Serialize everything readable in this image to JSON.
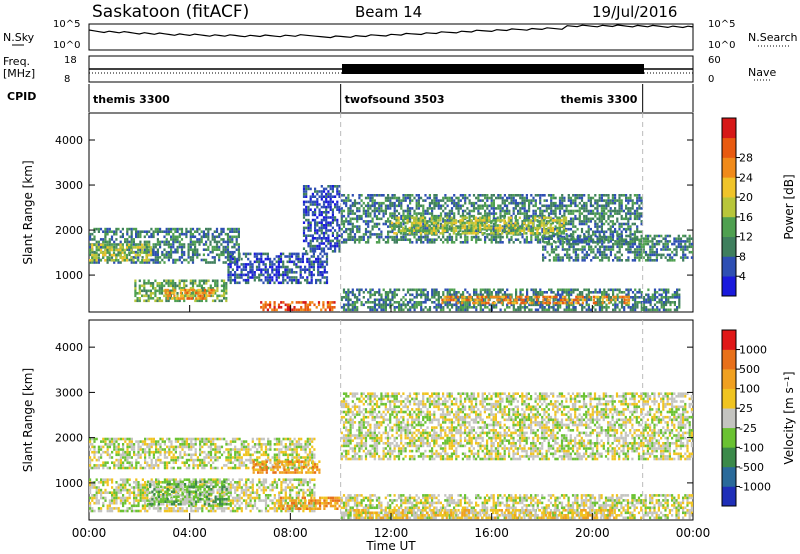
{
  "header": {
    "station": "Saskatoon (fitACF)",
    "beam": "Beam 14",
    "date": "19/Jul/2016"
  },
  "status_panels": {
    "nsky": {
      "label": "N.Sky",
      "ticks_left": [
        "10^5",
        "10^0"
      ]
    },
    "nsearch": {
      "label": "N.Search",
      "ticks_right": [
        "10^5",
        "10^0"
      ]
    },
    "freq": {
      "label_line1": "Freq.",
      "label_line2": "[MHz]",
      "ticks_left": [
        "18",
        "8"
      ]
    },
    "nave": {
      "label": "Nave",
      "ticks_right": [
        "60",
        "0"
      ]
    },
    "cpid": {
      "label": "CPID",
      "segments": [
        {
          "name": "themis 3300",
          "start_h": 0,
          "end_h": 10
        },
        {
          "name": "twofsound 3503",
          "start_h": 10,
          "end_h": 22
        },
        {
          "name": "themis 3300",
          "start_h": 22,
          "end_h": 24
        }
      ]
    }
  },
  "chart_data": [
    {
      "type": "heatmap",
      "title": "Power",
      "ylabel": "Slant Range [km]",
      "xlabel": "Time UT",
      "xlim_hours": [
        0,
        24
      ],
      "ylim_km": [
        180,
        4600
      ],
      "y_ticks": [
        "1000",
        "2000",
        "3000",
        "4000"
      ],
      "x_ticks": [
        "00:00",
        "04:00",
        "08:00",
        "12:00",
        "16:00",
        "20:00",
        "00:00"
      ],
      "colorbar": {
        "label": "Power [dB]",
        "ticks": [
          "4",
          "8",
          "12",
          "16",
          "20",
          "24",
          "28"
        ],
        "colors": [
          "#1a1adc",
          "#2e4fb3",
          "#3f7f5e",
          "#4fa050",
          "#b8c63a",
          "#f0c42a",
          "#f08a1a",
          "#e85a10",
          "#d61818"
        ]
      },
      "regions": [
        {
          "t0": 0.0,
          "t1": 6.0,
          "r0": 1250,
          "r1": 2050,
          "level": 2
        },
        {
          "t0": 0.0,
          "t1": 2.5,
          "r0": 1300,
          "r1": 1700,
          "level": 4
        },
        {
          "t0": 1.8,
          "t1": 5.5,
          "r0": 400,
          "r1": 900,
          "level": 3
        },
        {
          "t0": 3.0,
          "t1": 5.0,
          "r0": 450,
          "r1": 700,
          "level": 6
        },
        {
          "t0": 5.5,
          "t1": 9.5,
          "r0": 800,
          "r1": 1500,
          "level": 1
        },
        {
          "t0": 6.8,
          "t1": 9.8,
          "r0": 200,
          "r1": 420,
          "level": 7
        },
        {
          "t0": 8.5,
          "t1": 10.0,
          "r0": 1500,
          "r1": 3000,
          "level": 1
        },
        {
          "t0": 10.0,
          "t1": 22.0,
          "r0": 1700,
          "r1": 2800,
          "level": 2
        },
        {
          "t0": 12.0,
          "t1": 19.0,
          "r0": 1900,
          "r1": 2300,
          "level": 4
        },
        {
          "t0": 10.0,
          "t1": 23.5,
          "r0": 200,
          "r1": 700,
          "level": 2
        },
        {
          "t0": 14.0,
          "t1": 21.5,
          "r0": 350,
          "r1": 550,
          "level": 6
        },
        {
          "t0": 18.0,
          "t1": 24.0,
          "r0": 1300,
          "r1": 1900,
          "level": 2
        }
      ]
    },
    {
      "type": "heatmap",
      "title": "Velocity",
      "ylabel": "Slant Range [km]",
      "xlabel": "Time UT",
      "xlim_hours": [
        0,
        24
      ],
      "ylim_km": [
        180,
        4600
      ],
      "y_ticks": [
        "1000",
        "2000",
        "3000",
        "4000"
      ],
      "x_ticks": [
        "00:00",
        "04:00",
        "08:00",
        "12:00",
        "16:00",
        "20:00",
        "00:00"
      ],
      "colorbar": {
        "label": "Velocity [m s⁻¹]",
        "ticks": [
          "1000",
          "500",
          "100",
          "25",
          "-25",
          "-100",
          "-500",
          "-1000"
        ],
        "colors": [
          "#1f2fb8",
          "#2a6a9a",
          "#3b8a4a",
          "#6ac232",
          "#c4c4c0",
          "#f0c420",
          "#f0a020",
          "#e8701a",
          "#e01818"
        ]
      },
      "regions": [
        {
          "t0": 0.0,
          "t1": 9.0,
          "r0": 1300,
          "r1": 2000,
          "level": 4
        },
        {
          "t0": 0.0,
          "t1": 9.0,
          "r0": 350,
          "r1": 1100,
          "level": 4
        },
        {
          "t0": 2.3,
          "t1": 5.6,
          "r0": 500,
          "r1": 1050,
          "level": 3
        },
        {
          "t0": 6.5,
          "t1": 9.2,
          "r0": 1200,
          "r1": 1500,
          "level": 6
        },
        {
          "t0": 7.5,
          "t1": 10.0,
          "r0": 400,
          "r1": 700,
          "level": 6
        },
        {
          "t0": 10.0,
          "t1": 24.0,
          "r0": 1500,
          "r1": 3000,
          "level": 4
        },
        {
          "t0": 10.0,
          "t1": 24.0,
          "r0": 200,
          "r1": 750,
          "level": 4
        },
        {
          "t0": 10.5,
          "t1": 21.0,
          "r0": 200,
          "r1": 420,
          "level": 5
        }
      ]
    }
  ]
}
